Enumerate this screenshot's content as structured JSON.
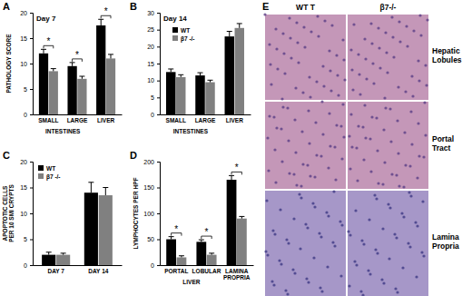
{
  "chart_data": [
    {
      "panel": "A",
      "type": "bar",
      "title": "Day 7",
      "y_label": "PATHOLOGY SCORE",
      "categories": [
        "SMALL",
        "LARGE",
        "LIVER"
      ],
      "series": [
        {
          "color": "#000000",
          "values": [
            12,
            9.5,
            17.5
          ],
          "errors": [
            0.8,
            0.7,
            1.2
          ]
        },
        {
          "color": "#808080",
          "values": [
            8.5,
            7,
            11
          ],
          "errors": [
            0.5,
            0.5,
            0.8
          ]
        }
      ],
      "ylim": [
        0,
        20
      ],
      "yticks": [
        0,
        5,
        10,
        15,
        20
      ],
      "significance": [
        "*",
        "*",
        "*"
      ],
      "category_groups": [
        {
          "label": "INTESTINES",
          "categories": [
            "SMALL",
            "LARGE"
          ]
        }
      ]
    },
    {
      "panel": "B",
      "type": "bar",
      "title": "Day 14",
      "categories": [
        "SMALL",
        "LARGE",
        "LIVER"
      ],
      "series": [
        {
          "name": "WT",
          "color": "#000000",
          "values": [
            12.5,
            11.5,
            23
          ],
          "errors": [
            0.9,
            0.8,
            1.5
          ]
        },
        {
          "name": "β7 -/-",
          "color": "#808080",
          "values": [
            11,
            9.5,
            25.5
          ],
          "errors": [
            0.7,
            0.6,
            1.3
          ]
        }
      ],
      "ylim": [
        0,
        30
      ],
      "yticks": [
        0,
        5,
        10,
        15,
        20,
        25,
        30
      ],
      "legend": "upper left",
      "category_groups": [
        {
          "label": "INTESTINES",
          "categories": [
            "SMALL",
            "LARGE"
          ]
        }
      ]
    },
    {
      "panel": "C",
      "type": "bar",
      "y_label": "APOPTOTIC CELLS PER 10 SMI CRYPTS",
      "categories": [
        "DAY 7",
        "DAY 14"
      ],
      "series": [
        {
          "name": "WT",
          "color": "#000000",
          "values": [
            2,
            14
          ],
          "errors": [
            0.5,
            2
          ]
        },
        {
          "name": "β7 -/-",
          "color": "#808080",
          "values": [
            2,
            13.5
          ],
          "errors": [
            0.3,
            1.5
          ]
        }
      ],
      "ylim": [
        0,
        20
      ],
      "yticks": [
        0,
        5,
        10,
        15,
        20
      ],
      "legend": "upper left"
    },
    {
      "panel": "D",
      "type": "bar",
      "y_label": "LYMPHOCYTES PER HPF",
      "categories": [
        "PORTAL",
        "LOBULAR",
        "LAMINA PROPRIA"
      ],
      "series": [
        {
          "color": "#000000",
          "values": [
            50,
            45,
            165
          ],
          "errors": [
            5,
            4,
            8
          ]
        },
        {
          "color": "#808080",
          "values": [
            15,
            20,
            90
          ],
          "errors": [
            3,
            3,
            4
          ]
        }
      ],
      "ylim": [
        0,
        200
      ],
      "yticks": [
        0,
        50,
        100,
        150,
        200
      ],
      "significance": [
        "*",
        "*",
        "*"
      ],
      "category_groups": [
        {
          "label": "LIVER",
          "categories": [
            "PORTAL",
            "LOBULAR"
          ]
        }
      ]
    }
  ],
  "image_panel": {
    "panel": "E",
    "columns": [
      "WT T",
      "β7-/-"
    ],
    "rows": [
      "Hepatic Lobules",
      "Portal Tract",
      "Lamina Propria"
    ]
  }
}
